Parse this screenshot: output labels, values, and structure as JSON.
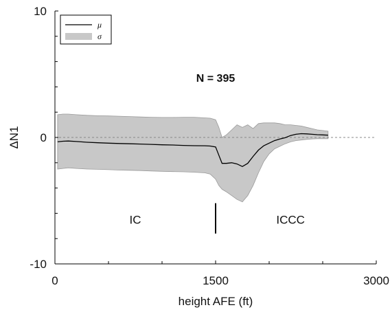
{
  "chart_data": {
    "type": "area",
    "title": "",
    "annotation": "N = 395",
    "xlabel": "height AFE (ft)",
    "ylabel": "ΔN1",
    "xlim": [
      0,
      3000
    ],
    "ylim": [
      -10,
      10
    ],
    "x_ticks": [
      0,
      1500,
      3000
    ],
    "x_tick_labels": [
      "0",
      "1500",
      "3000"
    ],
    "y_tick_labels_shown": [
      10,
      0,
      -10
    ],
    "y_minor_ticks": [
      -8,
      -6,
      -4,
      -2,
      2,
      4,
      6,
      8
    ],
    "x_minor_ticks": [
      500,
      1000,
      2000,
      2500
    ],
    "grid": false,
    "legend": {
      "position": "top-left",
      "entries": [
        {
          "label": "μ",
          "style": "line",
          "color": "#000000"
        },
        {
          "label": "σ",
          "style": "band",
          "color": "#c8c8c8"
        }
      ]
    },
    "reference_line": {
      "y": 0,
      "style": "dashed",
      "color": "#888888"
    },
    "separator": {
      "x": 1500,
      "y_range": [
        -5.2,
        -7.6
      ]
    },
    "region_labels": [
      {
        "text": "IC",
        "x": 750,
        "y": -6.5
      },
      {
        "text": "ICCC",
        "x": 2200,
        "y": -6.5
      }
    ],
    "x": [
      25,
      75,
      125,
      200,
      300,
      400,
      500,
      600,
      700,
      800,
      900,
      1000,
      1100,
      1200,
      1300,
      1400,
      1450,
      1500,
      1530,
      1560,
      1600,
      1650,
      1700,
      1750,
      1800,
      1850,
      1900,
      1950,
      2000,
      2050,
      2100,
      2150,
      2200,
      2250,
      2300,
      2350,
      2400,
      2450,
      2500,
      2550
    ],
    "series": [
      {
        "name": "μ",
        "values": [
          -0.35,
          -0.3,
          -0.28,
          -0.32,
          -0.38,
          -0.42,
          -0.45,
          -0.48,
          -0.5,
          -0.52,
          -0.55,
          -0.58,
          -0.6,
          -0.63,
          -0.65,
          -0.66,
          -0.68,
          -0.75,
          -1.4,
          -2.05,
          -2.05,
          -2.0,
          -2.1,
          -2.3,
          -2.05,
          -1.5,
          -1.0,
          -0.65,
          -0.45,
          -0.25,
          -0.12,
          -0.02,
          0.15,
          0.25,
          0.3,
          0.28,
          0.25,
          0.22,
          0.2,
          0.18
        ]
      },
      {
        "name": "σ upper",
        "values": [
          1.8,
          1.85,
          1.85,
          1.8,
          1.75,
          1.72,
          1.7,
          1.68,
          1.65,
          1.62,
          1.6,
          1.58,
          1.58,
          1.6,
          1.6,
          1.55,
          1.52,
          1.4,
          0.8,
          0.0,
          0.2,
          0.6,
          1.0,
          0.8,
          1.0,
          0.7,
          1.1,
          1.15,
          1.15,
          1.15,
          1.1,
          1.0,
          1.0,
          0.95,
          0.9,
          0.8,
          0.7,
          0.6,
          0.55,
          0.5
        ]
      },
      {
        "name": "σ lower",
        "values": [
          -2.5,
          -2.45,
          -2.4,
          -2.45,
          -2.5,
          -2.52,
          -2.55,
          -2.58,
          -2.6,
          -2.62,
          -2.65,
          -2.68,
          -2.7,
          -2.72,
          -2.75,
          -2.8,
          -2.9,
          -3.3,
          -3.8,
          -4.1,
          -4.3,
          -4.6,
          -4.9,
          -5.1,
          -4.6,
          -3.8,
          -2.8,
          -1.9,
          -1.3,
          -0.9,
          -0.7,
          -0.5,
          -0.35,
          -0.25,
          -0.2,
          -0.15,
          -0.12,
          -0.1,
          -0.1,
          -0.1
        ]
      }
    ]
  }
}
